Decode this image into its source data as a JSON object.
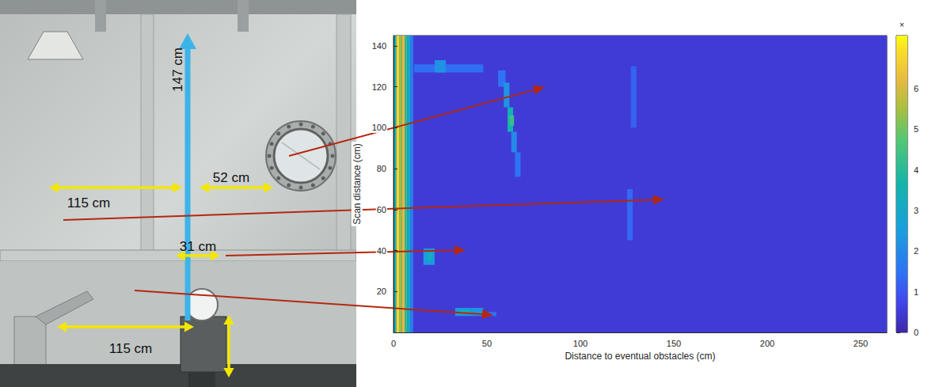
{
  "photo": {
    "annotations": [
      "147 cm",
      "52 cm",
      "115 cm",
      "31 cm",
      "115 cm"
    ]
  },
  "chart_data": {
    "type": "heatmap",
    "xlabel": "Distance to eventual obstacles (cm)",
    "ylabel": "Scan distance (cm)",
    "xlim": [
      0,
      264
    ],
    "xticks": [
      0,
      50,
      100,
      150,
      200,
      250
    ],
    "ylim": [
      0,
      145
    ],
    "yticks": [
      20,
      40,
      60,
      80,
      100,
      120,
      140
    ],
    "cells": [
      [
        0,
        264,
        0,
        145,
        0.5
      ],
      [
        0,
        1.5,
        0,
        145,
        3.5
      ],
      [
        1.5,
        3,
        0,
        145,
        6.8
      ],
      [
        3,
        4.5,
        0,
        145,
        5.3
      ],
      [
        4.5,
        6,
        0,
        145,
        6.2
      ],
      [
        6,
        7.5,
        0,
        145,
        4.2
      ],
      [
        7.5,
        9,
        0,
        145,
        3
      ],
      [
        9,
        10.5,
        0,
        145,
        1.8
      ],
      [
        11,
        48,
        127,
        131,
        1.4
      ],
      [
        22,
        28,
        127,
        133,
        2.2
      ],
      [
        56,
        60,
        120,
        128,
        1.5
      ],
      [
        59,
        62,
        110,
        122,
        2.3
      ],
      [
        61,
        64,
        98,
        110,
        3.4
      ],
      [
        62,
        64.5,
        101,
        106,
        4.3
      ],
      [
        63,
        66,
        88,
        98,
        2
      ],
      [
        65,
        68,
        76,
        88,
        1.5
      ],
      [
        127,
        130,
        100,
        130,
        1.2
      ],
      [
        125,
        128,
        45,
        70,
        1.3
      ],
      [
        16,
        22,
        33,
        41,
        2.4
      ],
      [
        18,
        21,
        35,
        39,
        3.2
      ],
      [
        33,
        48,
        8,
        12,
        2.3
      ],
      [
        35,
        41,
        9,
        11,
        3.4
      ],
      [
        48,
        55,
        8,
        10,
        1.5
      ]
    ],
    "colorbar_range": [
      0,
      7.3
    ],
    "colorbar_ticks": [
      0,
      1,
      2,
      3,
      4,
      5,
      6
    ],
    "colorbar_label": "×"
  }
}
